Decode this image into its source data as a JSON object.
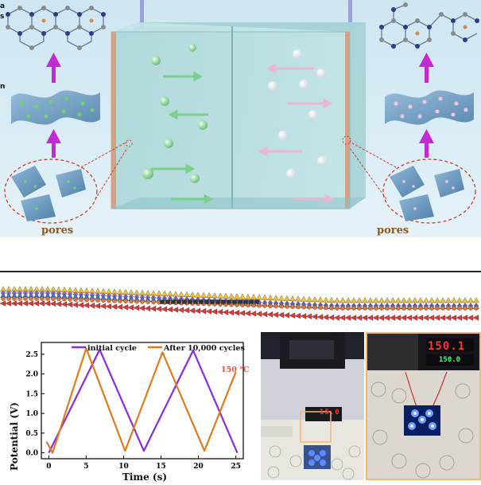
{
  "top_diagram": {
    "left_side_text": [
      "a",
      "s",
      "n"
    ],
    "pores_label_left": "pores",
    "pores_label_right": "pores",
    "colors": {
      "green_ion": "#7cc98a",
      "white_ion": "#f4f4f4",
      "arrow_purple": "#c32ad4",
      "pore_circle": "#d43a2a"
    }
  },
  "chart_data": {
    "type": "line",
    "xlabel": "Time (s)",
    "ylabel": "Potential (V)",
    "xlim": [
      -1,
      26
    ],
    "ylim": [
      -0.15,
      2.8
    ],
    "xticks": [
      0,
      5,
      10,
      15,
      20,
      25
    ],
    "yticks": [
      0.0,
      0.5,
      1.0,
      1.5,
      2.0,
      2.5
    ],
    "annotation": "150 °C",
    "series": [
      {
        "name": "initial cycle",
        "color": "#8a2be2",
        "points": [
          [
            0,
            0.0
          ],
          [
            6.8,
            2.62
          ],
          [
            12.7,
            0.05
          ],
          [
            19.3,
            2.6
          ],
          [
            25.2,
            0.0
          ]
        ]
      },
      {
        "name": "After 10,000 cycles",
        "color": "#e07b1a",
        "points": [
          [
            -0.3,
            0.28
          ],
          [
            0.5,
            0.0
          ],
          [
            5.0,
            2.65
          ],
          [
            10.2,
            0.05
          ],
          [
            15.2,
            2.55
          ],
          [
            20.8,
            0.05
          ],
          [
            25,
            2.05
          ]
        ]
      }
    ]
  },
  "photos": {
    "left_display": "15.0",
    "right_display_red": "150.1",
    "right_display_green": "150.0"
  }
}
